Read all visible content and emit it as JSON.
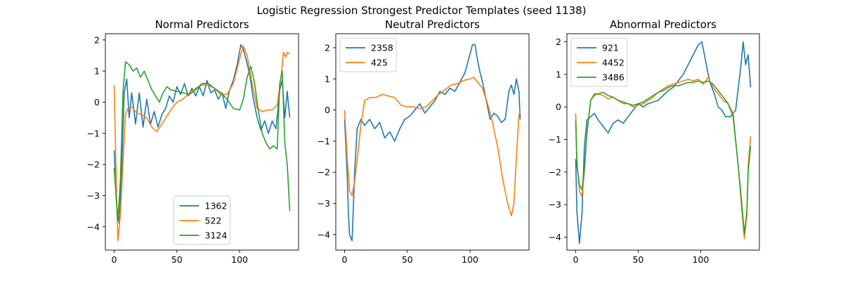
{
  "figure": {
    "title": "Logistic Regression Strongest Predictor Templates (seed 1138)"
  },
  "chart_data": [
    {
      "type": "line",
      "title": "Normal Predictors",
      "xlabel": "",
      "ylabel": "",
      "xlim": [
        -7,
        147
      ],
      "ylim": [
        -4.75,
        2.2
      ],
      "xticks": [
        0,
        50,
        100
      ],
      "yticks": [
        -4,
        -3,
        -2,
        -1,
        0,
        1,
        2
      ],
      "grid": false,
      "legend": "lower center",
      "series": [
        {
          "name": "1362",
          "color": "#1f77b4",
          "x": [
            0,
            2,
            4,
            6,
            8,
            10,
            12,
            14,
            17,
            20,
            23,
            26,
            29,
            32,
            35,
            38,
            41,
            44,
            47,
            50,
            53,
            56,
            59,
            62,
            65,
            68,
            71,
            74,
            77,
            80,
            83,
            86,
            89,
            92,
            95,
            98,
            101,
            103,
            105,
            108,
            111,
            114,
            117,
            120,
            123,
            126,
            129,
            132,
            134,
            136,
            138,
            140
          ],
          "y": [
            -1.55,
            -3.3,
            -3.9,
            -2.2,
            0.3,
            0.75,
            -0.5,
            0.3,
            -0.7,
            0.3,
            -0.8,
            0.1,
            -0.7,
            -0.3,
            -0.8,
            -0.4,
            -0.2,
            0.2,
            0.0,
            0.5,
            0.25,
            0.6,
            0.2,
            0.45,
            0.2,
            0.5,
            0.2,
            0.7,
            0.3,
            0.4,
            0.1,
            0.3,
            -0.2,
            0.4,
            0.7,
            1.2,
            1.85,
            1.7,
            1.4,
            0.9,
            0.1,
            -0.5,
            -0.9,
            -0.6,
            -1.0,
            -0.6,
            -0.85,
            0.4,
            0.7,
            -0.5,
            0.35,
            -0.5
          ]
        },
        {
          "name": "522",
          "color": "#ff7f0e",
          "x": [
            0,
            2,
            3,
            5,
            7,
            9,
            11,
            14,
            18,
            22,
            26,
            30,
            34,
            38,
            42,
            46,
            50,
            55,
            60,
            65,
            70,
            75,
            80,
            85,
            90,
            95,
            100,
            103,
            106,
            110,
            114,
            118,
            122,
            126,
            130,
            133,
            135,
            137,
            138,
            140
          ],
          "y": [
            0.55,
            -3.2,
            -4.45,
            -3.6,
            -2.0,
            -0.4,
            -0.2,
            -0.15,
            -0.35,
            -0.4,
            -0.5,
            -0.8,
            -0.95,
            -0.7,
            -0.45,
            -0.2,
            0.0,
            0.1,
            0.3,
            0.45,
            0.55,
            0.55,
            0.45,
            0.25,
            0.25,
            0.6,
            1.4,
            1.8,
            1.5,
            0.6,
            -0.2,
            -0.3,
            -0.25,
            -0.25,
            -0.1,
            0.8,
            1.6,
            1.45,
            1.6,
            1.55
          ]
        },
        {
          "name": "3124",
          "color": "#2ca02c",
          "x": [
            0,
            2,
            3,
            5,
            7,
            9,
            12,
            15,
            18,
            21,
            24,
            27,
            30,
            33,
            36,
            39,
            42,
            45,
            50,
            55,
            60,
            65,
            70,
            75,
            80,
            85,
            90,
            95,
            100,
            103,
            106,
            109,
            112,
            115,
            118,
            121,
            124,
            127,
            130,
            132,
            134,
            136,
            138,
            140
          ],
          "y": [
            -2.1,
            -3.3,
            -3.8,
            -2.5,
            0.3,
            1.3,
            1.2,
            1.0,
            1.1,
            0.8,
            1.0,
            0.7,
            0.4,
            0.2,
            0.0,
            0.3,
            0.5,
            0.4,
            0.35,
            0.3,
            0.25,
            0.4,
            0.6,
            0.6,
            0.45,
            0.3,
            0.1,
            -0.2,
            -0.25,
            0.1,
            0.8,
            1.15,
            0.6,
            -0.3,
            -1.0,
            -1.3,
            -1.5,
            -1.4,
            -1.5,
            0.6,
            1.0,
            -1.3,
            -2.0,
            -3.5
          ]
        }
      ]
    },
    {
      "type": "line",
      "title": "Neutral Predictors",
      "xlabel": "",
      "ylabel": "",
      "xlim": [
        -7,
        147
      ],
      "ylim": [
        -4.5,
        2.45
      ],
      "xticks": [
        0,
        50,
        100
      ],
      "yticks": [
        -4,
        -3,
        -2,
        -1,
        0,
        1,
        2
      ],
      "grid": false,
      "legend": "upper left",
      "series": [
        {
          "name": "2358",
          "color": "#1f77b4",
          "x": [
            0,
            2,
            3,
            4,
            6,
            8,
            10,
            13,
            16,
            20,
            24,
            28,
            32,
            36,
            40,
            44,
            48,
            52,
            56,
            60,
            64,
            68,
            72,
            76,
            80,
            84,
            88,
            92,
            96,
            100,
            102,
            104,
            106,
            108,
            110,
            113,
            116,
            119,
            122,
            125,
            128,
            131,
            133,
            135,
            137,
            139,
            140
          ],
          "y": [
            -0.3,
            -2.0,
            -3.3,
            -4.0,
            -4.2,
            -2.0,
            -0.6,
            -0.3,
            -0.5,
            -0.3,
            -0.6,
            -0.4,
            -0.9,
            -0.7,
            -1.0,
            -0.6,
            -0.3,
            -0.2,
            0.0,
            0.2,
            -0.1,
            0.1,
            0.3,
            0.6,
            0.5,
            0.7,
            0.6,
            0.9,
            1.2,
            1.8,
            2.1,
            2.1,
            1.6,
            1.2,
            0.9,
            0.3,
            -0.3,
            -0.1,
            -0.2,
            -0.4,
            -0.3,
            0.6,
            0.8,
            0.5,
            1.0,
            0.6,
            -0.3
          ]
        },
        {
          "name": "425",
          "color": "#ff7f0e",
          "x": [
            0,
            2,
            4,
            6,
            8,
            10,
            13,
            16,
            20,
            25,
            30,
            35,
            40,
            45,
            50,
            55,
            60,
            65,
            70,
            75,
            80,
            85,
            90,
            95,
            100,
            103,
            106,
            110,
            114,
            118,
            122,
            126,
            130,
            133,
            135,
            137,
            139,
            140
          ],
          "y": [
            0.0,
            -1.5,
            -2.6,
            -2.75,
            -2.3,
            -1.6,
            -0.5,
            0.3,
            0.4,
            0.4,
            0.5,
            0.45,
            0.4,
            0.15,
            0.1,
            0.1,
            0.05,
            0.1,
            0.3,
            0.5,
            0.65,
            0.8,
            0.85,
            0.95,
            1.0,
            1.05,
            0.9,
            0.7,
            0.2,
            -0.4,
            -1.2,
            -2.2,
            -3.0,
            -3.4,
            -3.0,
            -1.5,
            -0.2,
            0.0
          ]
        }
      ]
    },
    {
      "type": "line",
      "title": "Abnormal Predictors",
      "xlabel": "",
      "ylabel": "",
      "xlim": [
        -7,
        147
      ],
      "ylim": [
        -4.4,
        2.25
      ],
      "xticks": [
        0,
        50,
        100
      ],
      "yticks": [
        -4,
        -3,
        -2,
        -1,
        0,
        1,
        2
      ],
      "grid": false,
      "legend": "upper left",
      "series": [
        {
          "name": "921",
          "color": "#1f77b4",
          "x": [
            0,
            1,
            3,
            5,
            7,
            9,
            12,
            15,
            18,
            22,
            26,
            30,
            34,
            38,
            42,
            46,
            50,
            54,
            58,
            62,
            66,
            70,
            74,
            78,
            82,
            86,
            90,
            94,
            98,
            101,
            104,
            106,
            108,
            111,
            114,
            117,
            120,
            124,
            128,
            132,
            134,
            136,
            138,
            140
          ],
          "y": [
            -1.6,
            -3.2,
            -4.2,
            -3.3,
            -1.2,
            -0.4,
            -0.3,
            -0.2,
            -0.4,
            -0.6,
            -0.8,
            -0.5,
            -0.4,
            -0.5,
            -0.3,
            -0.1,
            0.1,
            0.0,
            0.1,
            0.15,
            0.2,
            0.35,
            0.5,
            0.6,
            0.8,
            1.0,
            1.3,
            1.6,
            1.9,
            2.0,
            1.4,
            1.0,
            0.7,
            0.4,
            0.0,
            -0.1,
            -0.3,
            -0.3,
            -0.1,
            1.2,
            2.0,
            1.3,
            1.6,
            0.6
          ]
        },
        {
          "name": "4452",
          "color": "#ff7f0e",
          "x": [
            0,
            1,
            3,
            5,
            7,
            9,
            12,
            15,
            18,
            22,
            26,
            30,
            34,
            38,
            42,
            46,
            50,
            54,
            58,
            62,
            66,
            70,
            74,
            78,
            82,
            86,
            90,
            94,
            98,
            102,
            106,
            110,
            114,
            118,
            122,
            126,
            130,
            133,
            135,
            137,
            138,
            140
          ],
          "y": [
            -0.2,
            -1.6,
            -2.6,
            -2.75,
            -2.0,
            -0.8,
            0.2,
            0.35,
            0.4,
            0.35,
            0.25,
            0.3,
            0.2,
            0.1,
            0.1,
            0.0,
            0.05,
            0.1,
            0.2,
            0.3,
            0.45,
            0.55,
            0.65,
            0.7,
            0.75,
            0.8,
            0.85,
            0.8,
            0.85,
            0.7,
            0.9,
            0.6,
            0.4,
            0.2,
            0.1,
            -0.2,
            -1.8,
            -3.2,
            -4.05,
            -3.3,
            -1.8,
            -0.9
          ]
        },
        {
          "name": "3486",
          "color": "#2ca02c",
          "x": [
            0,
            1,
            3,
            5,
            7,
            9,
            12,
            15,
            18,
            22,
            26,
            30,
            34,
            38,
            42,
            46,
            50,
            54,
            58,
            62,
            66,
            70,
            74,
            78,
            82,
            86,
            90,
            94,
            98,
            102,
            106,
            110,
            114,
            118,
            122,
            126,
            130,
            133,
            135,
            137,
            138,
            140
          ],
          "y": [
            -0.4,
            -1.8,
            -2.4,
            -2.55,
            -1.9,
            -0.8,
            0.2,
            0.4,
            0.4,
            0.45,
            0.35,
            0.3,
            0.2,
            0.15,
            0.1,
            0.05,
            0.1,
            0.15,
            0.25,
            0.35,
            0.45,
            0.5,
            0.6,
            0.65,
            0.65,
            0.7,
            0.75,
            0.75,
            0.8,
            0.75,
            0.8,
            0.7,
            0.5,
            0.3,
            0.1,
            -0.3,
            -1.8,
            -3.0,
            -3.9,
            -3.2,
            -2.0,
            -1.2
          ]
        }
      ]
    }
  ]
}
